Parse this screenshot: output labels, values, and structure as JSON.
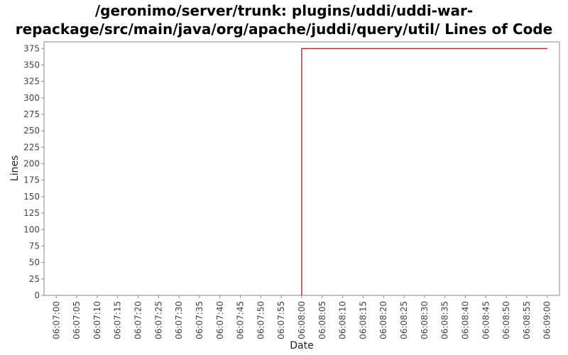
{
  "chart_data": {
    "type": "line",
    "title_lines": [
      "/geronimo/server/trunk: plugins/uddi/uddi-war-",
      "repackage/src/main/java/org/apache/juddi/query/util/ Lines of Code"
    ],
    "xlabel": "Date",
    "ylabel": "Lines",
    "ylim": [
      0,
      385
    ],
    "yticks": [
      0,
      25,
      50,
      75,
      100,
      125,
      150,
      175,
      200,
      225,
      250,
      275,
      300,
      325,
      350,
      375
    ],
    "xticks": [
      "06:07:00",
      "06:07:05",
      "06:07:10",
      "06:07:15",
      "06:07:20",
      "06:07:25",
      "06:07:30",
      "06:07:35",
      "06:07:40",
      "06:07:45",
      "06:07:50",
      "06:07:55",
      "06:08:00",
      "06:08:05",
      "06:08:10",
      "06:08:15",
      "06:08:20",
      "06:08:25",
      "06:08:30",
      "06:08:35",
      "06:08:40",
      "06:08:45",
      "06:08:50",
      "06:08:55",
      "06:09:00"
    ],
    "xlim": [
      "06:06:57",
      "06:09:03"
    ],
    "grid": false,
    "series": [
      {
        "color": "#aa0000",
        "points": [
          {
            "x": "06:08:00",
            "y": 0
          },
          {
            "x": "06:08:00",
            "y": 375
          },
          {
            "x": "06:09:00",
            "y": 375
          }
        ]
      }
    ]
  }
}
